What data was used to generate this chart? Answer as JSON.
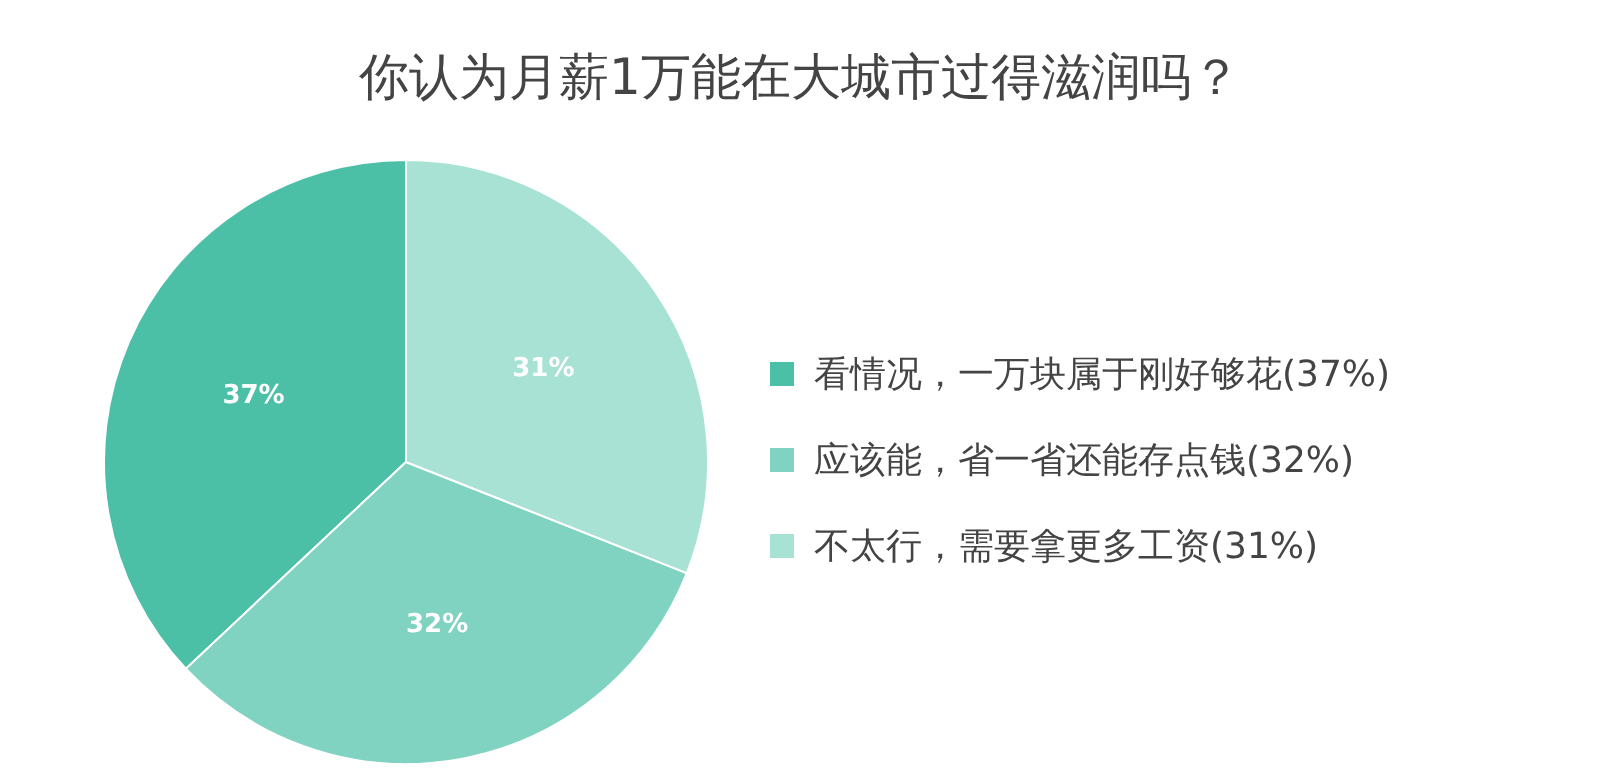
{
  "chart_data": {
    "type": "pie",
    "title": "你认为月薪1万能在大城市过得滋润吗？",
    "categories": [
      "看情况，一万块属于刚好够花(37%)",
      "应该能，省一省还能存点钱(32%)",
      "不太行，需要拿更多工资(31%)"
    ],
    "values": [
      37,
      32,
      31
    ],
    "colors": [
      "#4cc0a6",
      "#7fd3c0",
      "#a8e2d5"
    ],
    "value_labels": [
      "37%",
      "32%",
      "31%"
    ],
    "legend": "right"
  }
}
